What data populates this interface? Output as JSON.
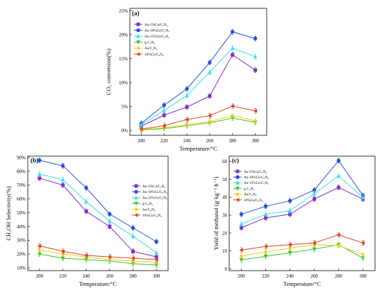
{
  "figure": {
    "colors": {
      "Au-5%Cu/C3N4": "#7b2fd1",
      "Au-10%Cu/C3N4": "#1f4fe0",
      "Au-15%Cu/C3N4": "#33e0ee",
      "g-C3N4": "#35c61f",
      "Au/C3N4": "#f2cc1a",
      "10%Cu/C3N4": "#e0401c"
    },
    "markers": {
      "Au-5%Cu/C3N4": "square",
      "Au-10%Cu/C3N4": "circle",
      "Au-15%Cu/C3N4": "triangle-up",
      "g-C3N4": "triangle-down",
      "Au/C3N4": "diamond",
      "10%Cu/C3N4": "triangle-left"
    }
  },
  "chart_data": [
    {
      "type": "line",
      "panel": "(a)",
      "xlabel": "Temperature/°C",
      "ylabel": "CO₂ conversion(%)",
      "x": [
        200,
        220,
        240,
        260,
        280,
        300
      ],
      "xticks": [
        "200",
        "220",
        "240",
        "260",
        "280",
        "300"
      ],
      "yticks": [
        "0%",
        "5%",
        "10%",
        "15%",
        "20%",
        "25%"
      ],
      "ytick_values": [
        0,
        5,
        10,
        15,
        20,
        25
      ],
      "ylim": [
        -1,
        25.5
      ],
      "legend": "top-left",
      "series": [
        {
          "name": "Au-5%Cu/C₃N₄",
          "key": "Au-5%Cu/C3N4",
          "values": [
            0.9,
            3.2,
            4.9,
            7.2,
            15.8,
            12.6
          ]
        },
        {
          "name": "Au-10%Cu/C₃N₄",
          "key": "Au-10%Cu/C3N4",
          "values": [
            1.5,
            5.3,
            8.7,
            14.2,
            20.6,
            19.2
          ]
        },
        {
          "name": "Au-15%Cu/C₃N₄",
          "key": "Au-15%Cu/C3N4",
          "values": [
            1.2,
            4.2,
            7.3,
            12.2,
            17.2,
            15.4
          ]
        },
        {
          "name": "g-C₃N₄",
          "key": "g-C3N4",
          "values": [
            0.1,
            0.4,
            1.0,
            1.6,
            2.6,
            1.7
          ]
        },
        {
          "name": "Au/C₃N₄",
          "key": "Au/C3N4",
          "values": [
            0.2,
            0.6,
            1.2,
            1.9,
            3.1,
            2.0
          ]
        },
        {
          "name": "10%Cu/C₃N₄",
          "key": "10%Cu/C3N4",
          "values": [
            0.3,
            1.0,
            2.3,
            3.1,
            5.1,
            4.1
          ]
        }
      ]
    },
    {
      "type": "line",
      "panel": "(b)",
      "xlabel": "Temperature/°C",
      "ylabel": "CH₃OH Selectivity(%)",
      "x": [
        200,
        220,
        240,
        260,
        280,
        300
      ],
      "xticks": [
        "200",
        "220",
        "240",
        "260",
        "280",
        "300"
      ],
      "yticks": [
        "10%",
        "20%",
        "30%",
        "40%",
        "50%",
        "60%",
        "70%",
        "80%",
        "90%"
      ],
      "ytick_values": [
        10,
        20,
        30,
        40,
        50,
        60,
        70,
        80,
        90
      ],
      "ylim": [
        8,
        91
      ],
      "legend": "center-right",
      "series": [
        {
          "name": "Au-5%Cu/C₃N₄",
          "key": "Au-5%Cu/C3N4",
          "values": [
            75,
            70,
            51,
            40,
            22,
            18
          ]
        },
        {
          "name": "Au-10%Cu/C₃N₄",
          "key": "Au-10%Cu/C3N4",
          "values": [
            88,
            84,
            68,
            49,
            39,
            29
          ]
        },
        {
          "name": "Au-15%Cu/C₃N₄",
          "key": "Au-15%Cu/C3N4",
          "values": [
            78,
            74,
            58,
            44,
            33,
            21
          ]
        },
        {
          "name": "g-C₃N₄",
          "key": "g-C3N4",
          "values": [
            20,
            17,
            16,
            15,
            13,
            12
          ]
        },
        {
          "name": "Au/C₃N₄",
          "key": "Au/C3N4",
          "values": [
            23,
            20,
            18,
            16,
            15,
            14
          ]
        },
        {
          "name": "10%Cu/C₃N₄",
          "key": "10%Cu/C3N4",
          "values": [
            26,
            22,
            19,
            18,
            17,
            16
          ]
        }
      ]
    },
    {
      "type": "line",
      "panel": "(c)",
      "xlabel": "Temperature/°C",
      "ylabel": "Yield of methanol (g·kg⁻¹·h⁻¹)",
      "x": [
        200,
        220,
        240,
        260,
        280,
        300
      ],
      "xticks": [
        "200",
        "220",
        "240",
        "260",
        "280",
        "300"
      ],
      "yticks": [
        "0",
        "10",
        "20",
        "30",
        "40",
        "50",
        "60"
      ],
      "ytick_values": [
        0,
        10,
        20,
        30,
        40,
        50,
        60
      ],
      "ylim": [
        -1,
        63
      ],
      "legend": "top-left",
      "series": [
        {
          "name": "Au-5%Cu/C₃N₄",
          "key": "Au-5%Cu/C3N4",
          "values": [
            23,
            28.5,
            30.5,
            39,
            45.5,
            39
          ]
        },
        {
          "name": "Au-10%Cu/C₃N₄",
          "key": "Au-10%Cu/C3N4",
          "values": [
            30.5,
            35,
            38,
            44,
            60.5,
            41
          ]
        },
        {
          "name": "Au-15%Cu/C₃N₄",
          "key": "Au-15%Cu/C3N4",
          "values": [
            25,
            30.5,
            32.5,
            42,
            52,
            40
          ]
        },
        {
          "name": "g-C₃N₄",
          "key": "g-C3N4",
          "values": [
            5,
            7,
            9,
            11,
            13.5,
            6
          ]
        },
        {
          "name": "Au/C₃N₄",
          "key": "Au/C3N4",
          "values": [
            7,
            9.5,
            11.5,
            13.5,
            13,
            8
          ]
        },
        {
          "name": "10%Cu/C₃N₄",
          "key": "10%Cu/C3N4",
          "values": [
            10.5,
            12.5,
            13.5,
            14.5,
            19,
            14.5
          ]
        }
      ]
    }
  ]
}
